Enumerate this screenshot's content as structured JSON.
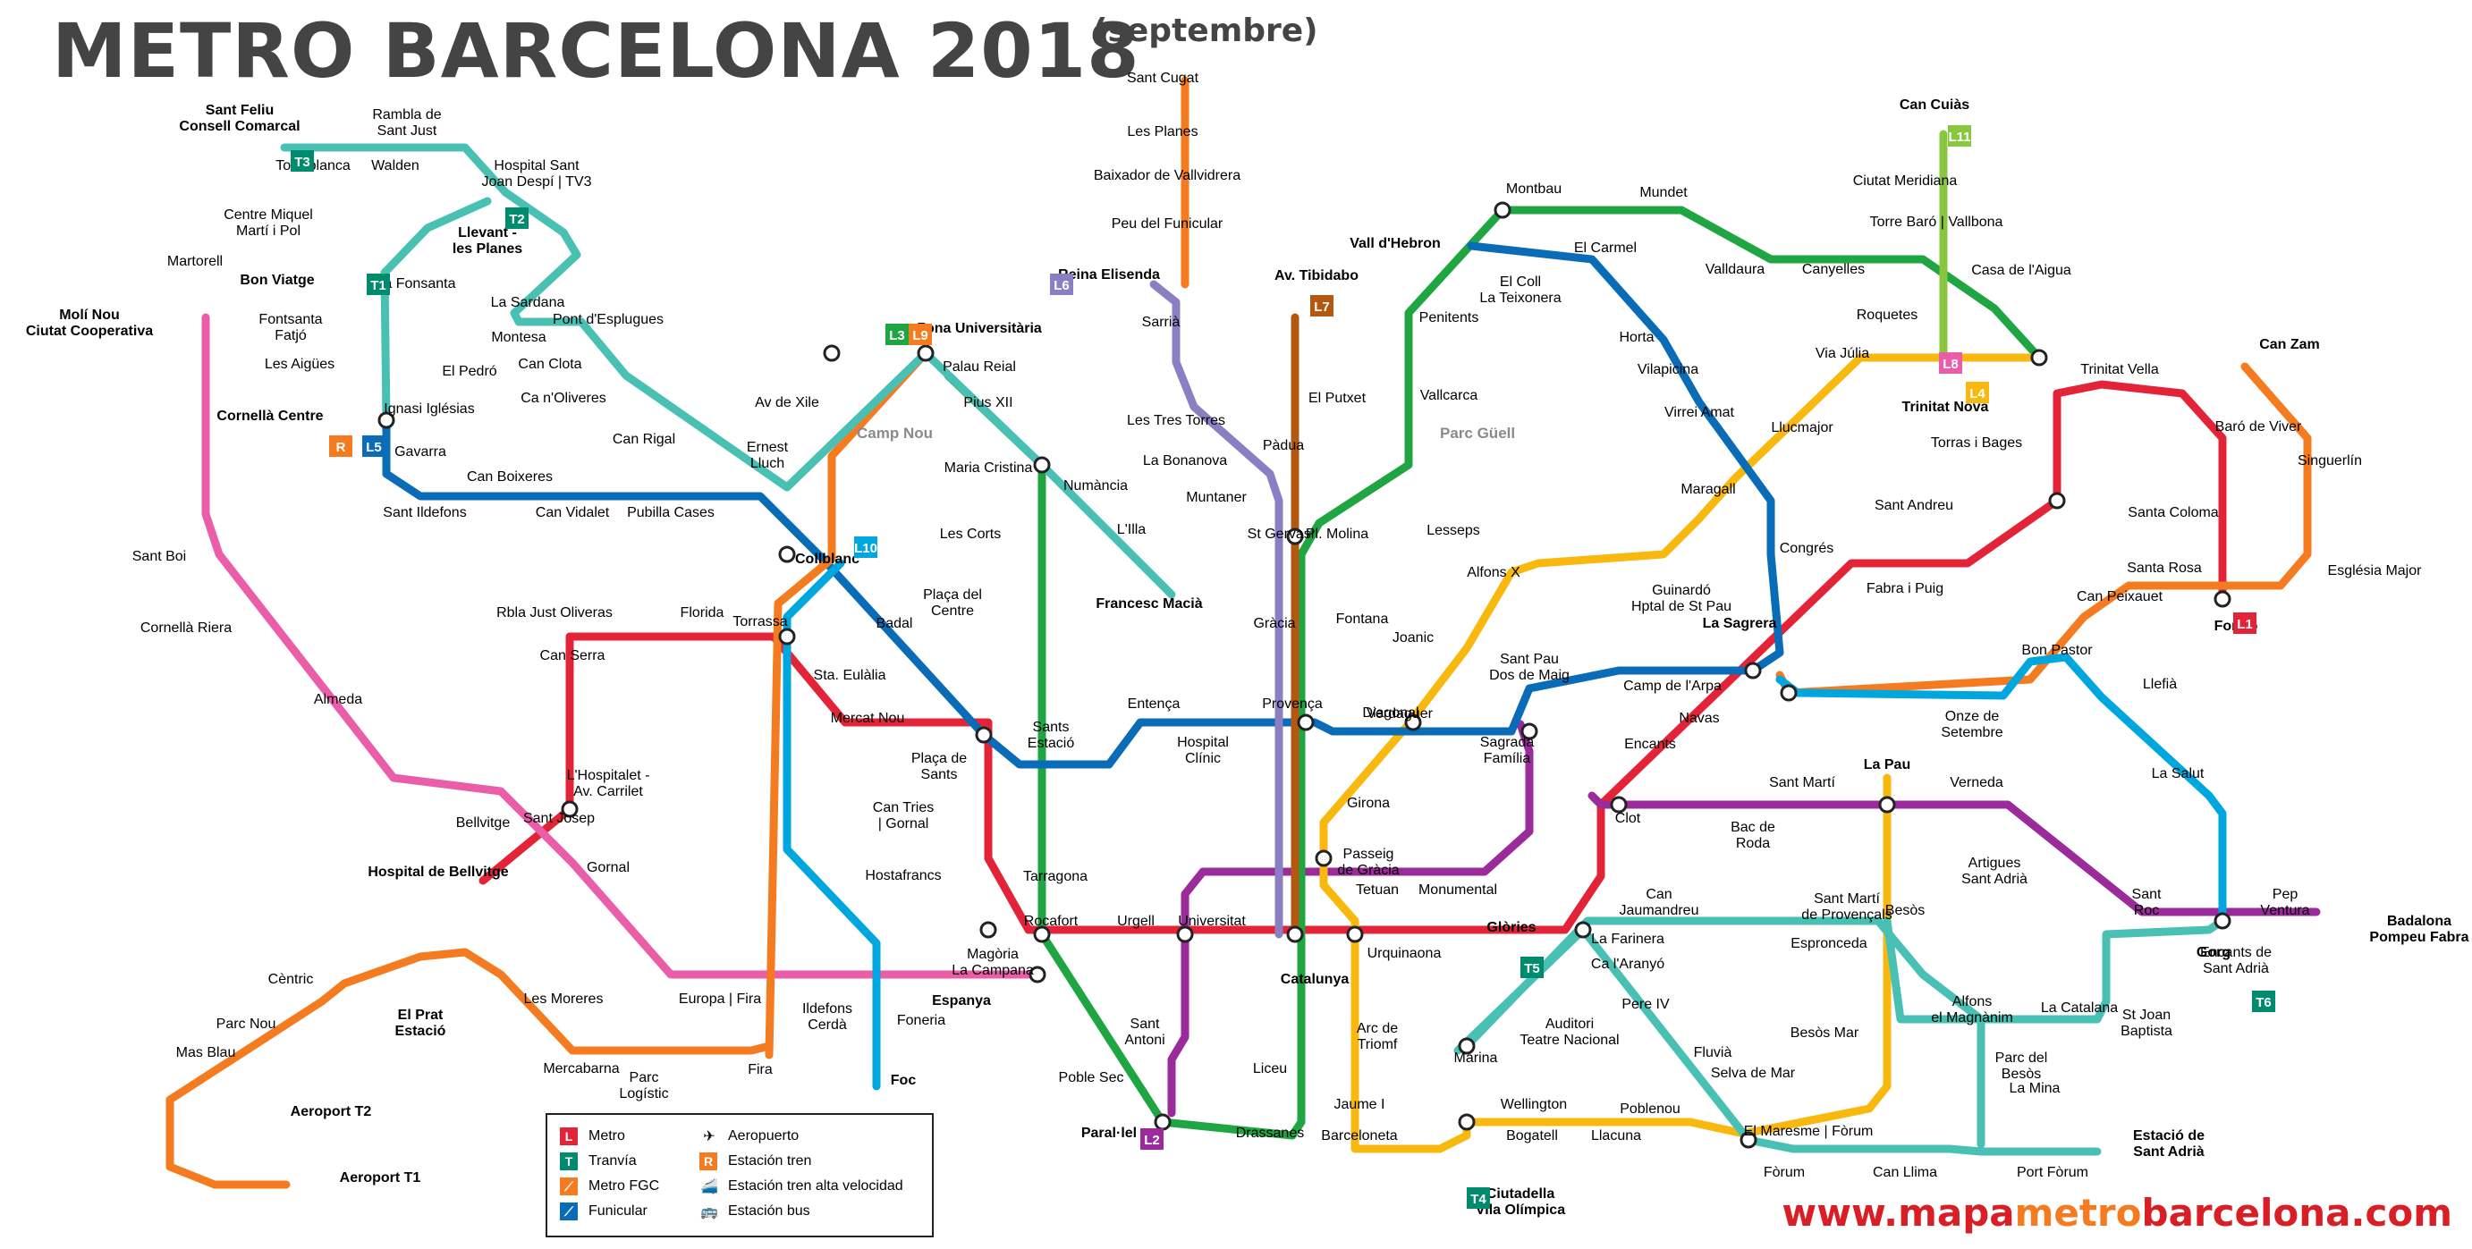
{
  "header": {
    "title": "METRO BARCELONA 2018",
    "subtitle": "(septembre)"
  },
  "footer": {
    "url_part1": "www.mapa",
    "url_part2": "metro",
    "url_part3": "barcelona",
    "url_part4": ".com"
  },
  "colors": {
    "L1": "#e32438",
    "L2": "#9b2a9a",
    "L3": "#1fa643",
    "L4": "#f8b80e",
    "L5": "#0a6bb7",
    "L6": "#8b7fc3",
    "L7": "#b35811",
    "L8": "#ea5da8",
    "L9": "#f47b20",
    "L10": "#00a6de",
    "L11": "#8ac640",
    "tram": "#48c0b3",
    "tram_badge": "#008b6f",
    "renfe": "#f47b20"
  },
  "parks": [
    "Camp Nou",
    "Parc Güell"
  ],
  "legend": {
    "items_left": [
      "Metro",
      "Tranvía",
      "Metro FGC",
      "Funicular"
    ],
    "items_right": [
      "Aeropuerto",
      "Estación tren",
      "Estación tren alta velocidad",
      "Estación bus"
    ]
  },
  "badges": [
    {
      "t": "T3",
      "c": "#008b6f"
    },
    {
      "t": "T2",
      "c": "#008b6f"
    },
    {
      "t": "T1",
      "c": "#008b6f"
    },
    {
      "t": "L8",
      "c": "#ea5da8"
    },
    {
      "t": "R",
      "c": "#f47b20"
    },
    {
      "t": "L5",
      "c": "#0a6bb7"
    },
    {
      "t": "L3",
      "c": "#1fa643"
    },
    {
      "t": "L9",
      "c": "#f47b20"
    },
    {
      "t": "L10",
      "c": "#00a6de"
    },
    {
      "t": "L6",
      "c": "#8b7fc3"
    },
    {
      "t": "L7",
      "c": "#b35811"
    },
    {
      "t": "L11",
      "c": "#8ac640"
    },
    {
      "t": "L4",
      "c": "#f8b80e"
    },
    {
      "t": "L1",
      "c": "#e32438"
    },
    {
      "t": "L2",
      "c": "#9b2a9a"
    },
    {
      "t": "T4",
      "c": "#008b6f"
    },
    {
      "t": "T5",
      "c": "#008b6f"
    },
    {
      "t": "T6",
      "c": "#008b6f"
    }
  ],
  "stations": [
    {
      "n": "Sant Feliu\nConsell Comarcal",
      "b": 1
    },
    {
      "n": "Rambla de\nSant Just"
    },
    {
      "n": "Torreblanca"
    },
    {
      "n": "Walden"
    },
    {
      "n": "Hospital Sant\nJoan Despí | TV3"
    },
    {
      "n": "Llevant -\nles Planes",
      "b": 1
    },
    {
      "n": "Centre Miquel\nMartí i Pol"
    },
    {
      "n": "Bon Viatge",
      "b": 1
    },
    {
      "n": "La Fonsanta"
    },
    {
      "n": "La Sardana"
    },
    {
      "n": "Pont d'Esplugues"
    },
    {
      "n": "Fontsanta\nFatjó"
    },
    {
      "n": "Montesa"
    },
    {
      "n": "Les Aigües"
    },
    {
      "n": "El Pedró"
    },
    {
      "n": "Can Clota"
    },
    {
      "n": "Cornellà Centre",
      "b": 1
    },
    {
      "n": "Ignasi Iglésias"
    },
    {
      "n": "Ca n'Oliveres"
    },
    {
      "n": "Can Rigal"
    },
    {
      "n": "Ernest\nLluch"
    },
    {
      "n": "Gavarra"
    },
    {
      "n": "Can Boixeres"
    },
    {
      "n": "Sant Ildefons"
    },
    {
      "n": "Can Vidalet"
    },
    {
      "n": "Pubilla Cases"
    },
    {
      "n": "Martorell"
    },
    {
      "n": "Molí Nou\nCiutat Cooperativa",
      "b": 1
    },
    {
      "n": "Sant Boi"
    },
    {
      "n": "Cornellà Riera"
    },
    {
      "n": "Almeda"
    },
    {
      "n": "Bellvitge"
    },
    {
      "n": "Hospital de Bellvitge",
      "b": 1
    },
    {
      "n": "L'Hospitalet -\nAv. Carrilet"
    },
    {
      "n": "Sant Josep"
    },
    {
      "n": "Gornal"
    },
    {
      "n": "Rbla Just Oliveras"
    },
    {
      "n": "Can Serra"
    },
    {
      "n": "Florida"
    },
    {
      "n": "Torrassa"
    },
    {
      "n": "Sta. Eulàlia"
    },
    {
      "n": "Mercat Nou"
    },
    {
      "n": "Av de Xile"
    },
    {
      "n": "Collblanc",
      "b": 1
    },
    {
      "n": "Badal"
    },
    {
      "n": "Zona Universitària",
      "b": 1
    },
    {
      "n": "Palau Reial"
    },
    {
      "n": "Pius XII"
    },
    {
      "n": "Maria Cristina"
    },
    {
      "n": "Numància"
    },
    {
      "n": "L'Illa"
    },
    {
      "n": "Francesc Macià",
      "b": 1
    },
    {
      "n": "Les Corts"
    },
    {
      "n": "Plaça del\nCentre"
    },
    {
      "n": "Sants\nEstació"
    },
    {
      "n": "Plaça de\nSants"
    },
    {
      "n": "Can Tries\n| Gornal"
    },
    {
      "n": "Hostafrancs"
    },
    {
      "n": "Tarragona"
    },
    {
      "n": "Rocafort"
    },
    {
      "n": "Urgell"
    },
    {
      "n": "Universitat"
    },
    {
      "n": "Espanya",
      "b": 1
    },
    {
      "n": "Magòria\nLa Campana"
    },
    {
      "n": "Europa | Fira"
    },
    {
      "n": "Ildefons\nCerdà"
    },
    {
      "n": "Foneria"
    },
    {
      "n": "Foc",
      "b": 1
    },
    {
      "n": "Fira"
    },
    {
      "n": "Parc\nLogístic"
    },
    {
      "n": "Mercabarna"
    },
    {
      "n": "Les Moreres"
    },
    {
      "n": "El Prat\nEstació",
      "b": 1
    },
    {
      "n": "Cèntric"
    },
    {
      "n": "Parc Nou"
    },
    {
      "n": "Mas Blau"
    },
    {
      "n": "Aeroport T2",
      "b": 1
    },
    {
      "n": "Aeroport T1",
      "b": 1
    },
    {
      "n": "Sant Cugat"
    },
    {
      "n": "Les Planes"
    },
    {
      "n": "Baixador de Vallvidrera"
    },
    {
      "n": "Peu del Funicular"
    },
    {
      "n": "Reina Elisenda",
      "b": 1
    },
    {
      "n": "Sarrià"
    },
    {
      "n": "Les Tres Torres"
    },
    {
      "n": "La Bonanova"
    },
    {
      "n": "Muntaner"
    },
    {
      "n": "Av. Tibidabo",
      "b": 1
    },
    {
      "n": "El Putxet"
    },
    {
      "n": "Pàdua"
    },
    {
      "n": "St Gervasi"
    },
    {
      "n": "Pl. Molina"
    },
    {
      "n": "Gràcia"
    },
    {
      "n": "Fontana"
    },
    {
      "n": "Provença"
    },
    {
      "n": "Diagonal"
    },
    {
      "n": "Entença"
    },
    {
      "n": "Hospital\nClínic"
    },
    {
      "n": "Catalunya",
      "b": 1
    },
    {
      "n": "Sant\nAntoni"
    },
    {
      "n": "Poble Sec"
    },
    {
      "n": "Paral·lel",
      "b": 1
    },
    {
      "n": "Drassanes"
    },
    {
      "n": "Liceu"
    },
    {
      "n": "Vall d'Hebron",
      "b": 1
    },
    {
      "n": "Montbau"
    },
    {
      "n": "Mundet"
    },
    {
      "n": "El Coll\nLa Teixonera"
    },
    {
      "n": "El Carmel"
    },
    {
      "n": "Valldaura"
    },
    {
      "n": "Canyelles"
    },
    {
      "n": "Penitents"
    },
    {
      "n": "Vallcarca"
    },
    {
      "n": "Lesseps"
    },
    {
      "n": "Horta"
    },
    {
      "n": "Vilapicina"
    },
    {
      "n": "Virrei Amat"
    },
    {
      "n": "Maragall"
    },
    {
      "n": "Congrés"
    },
    {
      "n": "Can Cuiàs",
      "b": 1
    },
    {
      "n": "Ciutat Meridiana"
    },
    {
      "n": "Torre Baró | Vallbona"
    },
    {
      "n": "Casa de l'Aigua"
    },
    {
      "n": "Roquetes"
    },
    {
      "n": "Via Júlia"
    },
    {
      "n": "Trinitat Nova",
      "b": 1
    },
    {
      "n": "Llucmajor"
    },
    {
      "n": "Trinitat Vella"
    },
    {
      "n": "Can Zam",
      "b": 1
    },
    {
      "n": "Torras i Bages"
    },
    {
      "n": "Baró de Viver"
    },
    {
      "n": "Sant Andreu"
    },
    {
      "n": "Singuerlín"
    },
    {
      "n": "Santa Coloma"
    },
    {
      "n": "Església Major"
    },
    {
      "n": "Fabra i Puig"
    },
    {
      "n": "Santa Rosa"
    },
    {
      "n": "Can Peixauet"
    },
    {
      "n": "Fondo",
      "b": 1
    },
    {
      "n": "Alfons X"
    },
    {
      "n": "Guinardó\nHptal de St Pau"
    },
    {
      "n": "Joanic"
    },
    {
      "n": "Sant Pau\nDos de Maig"
    },
    {
      "n": "La Sagrera",
      "b": 1
    },
    {
      "n": "Bon Pastor"
    },
    {
      "n": "Llefià"
    },
    {
      "n": "Camp de l'Arpa"
    },
    {
      "n": "Onze de\nSetembre"
    },
    {
      "n": "Verdaguer"
    },
    {
      "n": "Sagrada\nFamília"
    },
    {
      "n": "Encants"
    },
    {
      "n": "Navas"
    },
    {
      "n": "La Salut"
    },
    {
      "n": "Girona"
    },
    {
      "n": "Passeig\nde Gràcia"
    },
    {
      "n": "Tetuan"
    },
    {
      "n": "Monumental"
    },
    {
      "n": "Clot"
    },
    {
      "n": "Sant Martí"
    },
    {
      "n": "La Pau",
      "b": 1
    },
    {
      "n": "Verneda"
    },
    {
      "n": "Bac de\nRoda"
    },
    {
      "n": "Artigues\nSant Adrià"
    },
    {
      "n": "Urquinaona"
    },
    {
      "n": "Glòries",
      "b": 1
    },
    {
      "n": "Can\nJaumandreu"
    },
    {
      "n": "Sant Martí\nde Provençals"
    },
    {
      "n": "Besòs"
    },
    {
      "n": "Sant\nRoc"
    },
    {
      "n": "Pep\nVentura"
    },
    {
      "n": "Badalona\nPompeu Fabra",
      "b": 1
    },
    {
      "n": "Gorg",
      "b": 1
    },
    {
      "n": "La Farinera"
    },
    {
      "n": "Espronceda"
    },
    {
      "n": "Encants de\nSant Adrià"
    },
    {
      "n": "Ca l'Aranyó"
    },
    {
      "n": "Arc de\nTriomf"
    },
    {
      "n": "Auditori\nTeatre Nacional"
    },
    {
      "n": "Pere IV"
    },
    {
      "n": "Alfons\nel Magnànim"
    },
    {
      "n": "La Catalana"
    },
    {
      "n": "St Joan\nBaptista"
    },
    {
      "n": "Marina"
    },
    {
      "n": "Fluvià"
    },
    {
      "n": "Besòs Mar"
    },
    {
      "n": "Parc del\nBesòs"
    },
    {
      "n": "Jaume I"
    },
    {
      "n": "Wellington"
    },
    {
      "n": "Selva de Mar"
    },
    {
      "n": "La Mina"
    },
    {
      "n": "Barceloneta"
    },
    {
      "n": "Bogatell"
    },
    {
      "n": "Llacuna"
    },
    {
      "n": "Poblenou"
    },
    {
      "n": "El Maresme | Fòrum"
    },
    {
      "n": "Fòrum"
    },
    {
      "n": "Can Llima"
    },
    {
      "n": "Port Fòrum"
    },
    {
      "n": "Estació de\nSant Adrià",
      "b": 1
    },
    {
      "n": "Ciutadella\nVila Olímpica",
      "b": 1
    }
  ]
}
